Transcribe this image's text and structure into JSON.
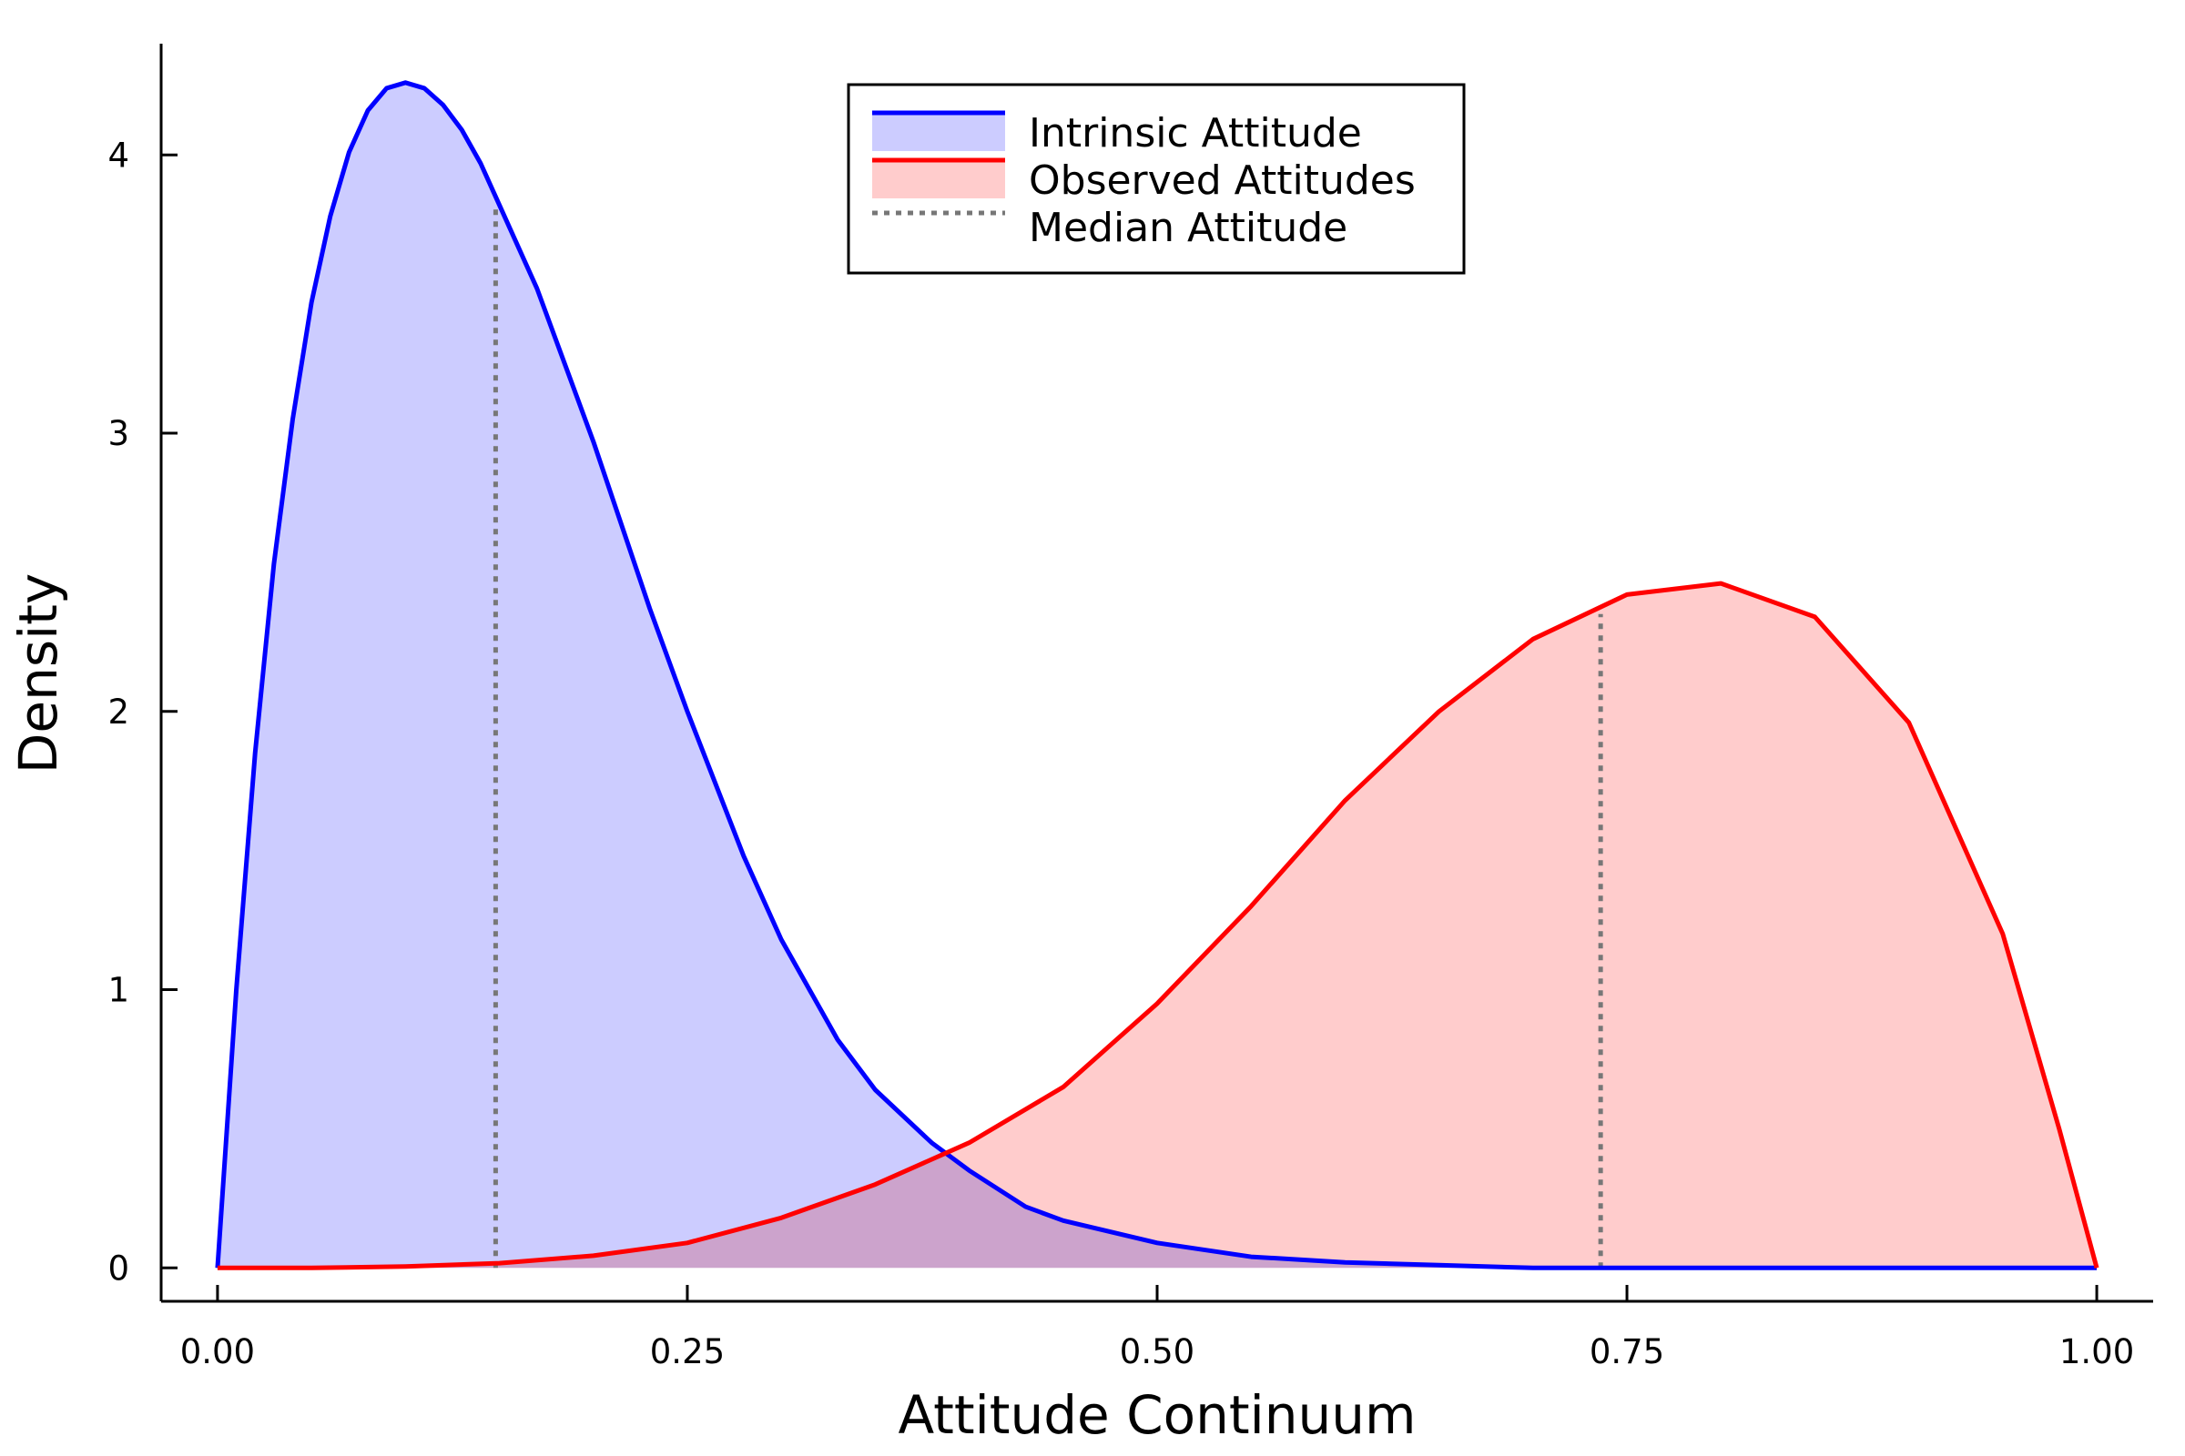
{
  "chart_data": {
    "type": "area",
    "title": "",
    "xlabel": "Attitude Continuum",
    "ylabel": "Density",
    "xlim": [
      -0.03,
      1.03
    ],
    "ylim": [
      -0.12,
      4.4
    ],
    "xticks": [
      0.0,
      0.25,
      0.5,
      0.75,
      1.0
    ],
    "xtick_labels": [
      "0.00",
      "0.25",
      "0.50",
      "0.75",
      "1.00"
    ],
    "yticks": [
      0,
      1,
      2,
      3,
      4
    ],
    "ytick_labels": [
      "0",
      "1",
      "2",
      "3",
      "4"
    ],
    "grid": false,
    "legend_position": "top-center",
    "series": [
      {
        "name": "Intrinsic Attitude",
        "color": "#0000ff",
        "fill": "#ccccff",
        "x": [
          0.0,
          0.01,
          0.02,
          0.03,
          0.04,
          0.05,
          0.06,
          0.07,
          0.08,
          0.09,
          0.1,
          0.11,
          0.12,
          0.13,
          0.14,
          0.15,
          0.17,
          0.2,
          0.23,
          0.25,
          0.28,
          0.3,
          0.33,
          0.35,
          0.38,
          0.4,
          0.43,
          0.45,
          0.5,
          0.55,
          0.6,
          0.65,
          0.7,
          0.75,
          0.8,
          0.9,
          1.0
        ],
        "y": [
          0.0,
          1.0,
          1.85,
          2.53,
          3.05,
          3.47,
          3.78,
          4.01,
          4.16,
          4.24,
          4.26,
          4.24,
          4.18,
          4.09,
          3.97,
          3.82,
          3.52,
          2.97,
          2.37,
          2.0,
          1.48,
          1.18,
          0.82,
          0.64,
          0.45,
          0.35,
          0.22,
          0.17,
          0.09,
          0.04,
          0.02,
          0.01,
          0.0,
          0.0,
          0.0,
          0.0,
          0.0
        ]
      },
      {
        "name": "Observed Attitudes",
        "color": "#ff0000",
        "fill": "#ffcccc",
        "x": [
          0.0,
          0.05,
          0.1,
          0.15,
          0.2,
          0.25,
          0.3,
          0.35,
          0.4,
          0.45,
          0.5,
          0.55,
          0.6,
          0.65,
          0.7,
          0.75,
          0.8,
          0.85,
          0.9,
          0.95,
          0.98,
          1.0
        ],
        "y": [
          0.0,
          0.0,
          0.005,
          0.017,
          0.044,
          0.09,
          0.18,
          0.3,
          0.45,
          0.65,
          0.95,
          1.3,
          1.68,
          2.0,
          2.26,
          2.42,
          2.46,
          2.34,
          1.96,
          1.2,
          0.5,
          0.0
        ]
      }
    ],
    "reference_lines": {
      "name": "Median Attitude",
      "color": "#777777",
      "style": "dotted",
      "lines": [
        {
          "x": 0.148,
          "y": 3.82
        },
        {
          "x": 0.736,
          "y": 2.35
        }
      ]
    }
  }
}
